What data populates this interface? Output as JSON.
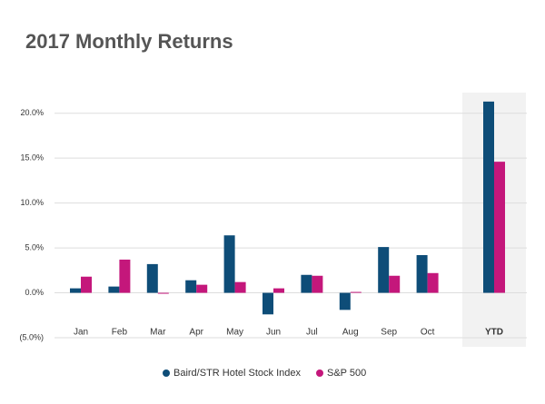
{
  "chart_data": {
    "type": "bar",
    "title": "2017 Monthly Returns",
    "categories": [
      "Jan",
      "Feb",
      "Mar",
      "Apr",
      "May",
      "Jun",
      "Jul",
      "Aug",
      "Sep",
      "Oct",
      "YTD"
    ],
    "series": [
      {
        "name": "Baird/STR Hotel Stock Index",
        "color": "#0e4d78",
        "values": [
          0.5,
          0.7,
          3.2,
          1.4,
          6.4,
          -2.4,
          2.0,
          -1.9,
          5.1,
          4.2,
          21.3
        ]
      },
      {
        "name": "S&P 500",
        "color": "#c4177b",
        "values": [
          1.8,
          3.7,
          -0.1,
          0.9,
          1.2,
          0.5,
          1.9,
          0.1,
          1.9,
          2.2,
          14.6
        ]
      }
    ],
    "ylim": [
      -5,
      22.5
    ],
    "yticks": [
      {
        "value": -5,
        "label": "(5.0%)"
      },
      {
        "value": 0,
        "label": "0.0%"
      },
      {
        "value": 5,
        "label": "5.0%"
      },
      {
        "value": 10,
        "label": "10.0%"
      },
      {
        "value": 15,
        "label": "15.0%"
      },
      {
        "value": 20,
        "label": "20.0%"
      }
    ],
    "grid": true,
    "legend": "bottom"
  }
}
